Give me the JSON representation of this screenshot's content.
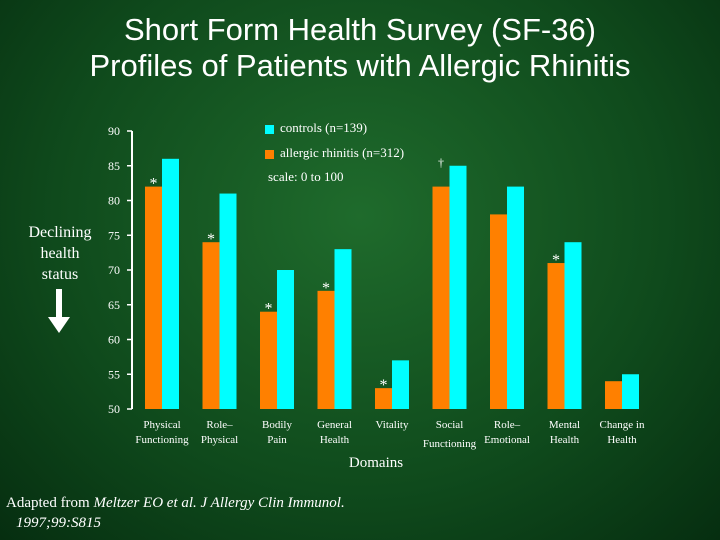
{
  "slide": {
    "title_line1": "Short Form Health Survey (SF-36)",
    "title_line2": "Profiles of Patients with Allergic Rhinitis",
    "side_note": [
      "Declining",
      "health",
      "status"
    ],
    "footer_plain": "Adapted from ",
    "footer_italic": "Meltzer EO et al. J Allergy Clin Immunol.",
    "footer_line2": "1997;99:S815"
  },
  "chart_data": {
    "type": "bar",
    "title": "",
    "xlabel": "Domains",
    "ylabel": "",
    "ylim": [
      50,
      90
    ],
    "yticks": [
      50,
      55,
      60,
      65,
      70,
      75,
      80,
      85,
      90
    ],
    "note": "scale: 0 to 100",
    "grid": false,
    "legend_position": "top-right",
    "categories": [
      [
        "Physical",
        "Functioning"
      ],
      [
        "Role–",
        "Physical"
      ],
      [
        "Bodily",
        "Pain"
      ],
      [
        "General",
        "Health"
      ],
      [
        "Vitality"
      ],
      [
        "Social",
        "Functioning"
      ],
      [
        "Role–",
        "Emotional"
      ],
      [
        "Mental",
        "Health"
      ],
      [
        "Change in",
        "Health"
      ]
    ],
    "series": [
      {
        "name": "allergic rhinitis (n=312)",
        "color": "#ff8000",
        "values": [
          82,
          74,
          64,
          67,
          53,
          82,
          78,
          71,
          54
        ]
      },
      {
        "name": "controls (n=139)",
        "color": "#00ffff",
        "values": [
          86,
          81,
          70,
          73,
          57,
          85,
          82,
          74,
          55
        ]
      }
    ],
    "annotations": [
      "*",
      "*",
      "*",
      "*",
      "*",
      "†",
      "",
      "*",
      ""
    ]
  },
  "colors": {
    "bg_center": "#1f6b2c",
    "bg_edge": "#062e10",
    "axis": "#ffffff",
    "text": "#ffffff"
  }
}
